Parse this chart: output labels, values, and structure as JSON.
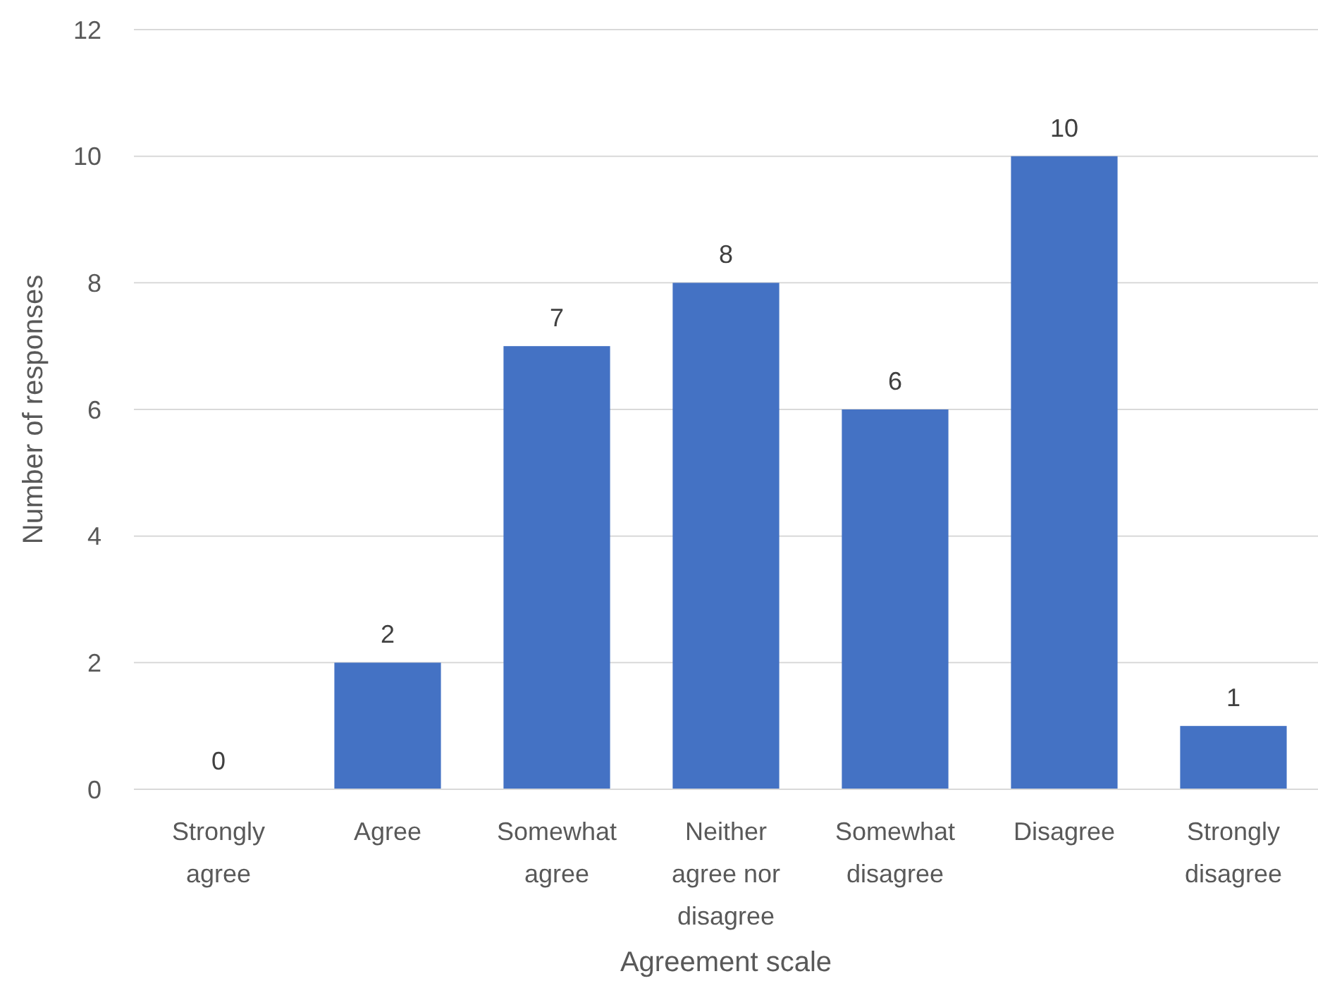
{
  "chart_data": {
    "type": "bar",
    "xlabel": "Agreement scale",
    "ylabel": "Number of responses",
    "categories": [
      "Strongly agree",
      "Agree",
      "Somewhat agree",
      "Neither agree nor disagree",
      "Somewhat disagree",
      "Disagree",
      "Strongly disagree"
    ],
    "values": [
      0,
      2,
      7,
      8,
      6,
      10,
      1
    ],
    "color": "#4472c4",
    "ylim": [
      0,
      12
    ],
    "yticks": [
      0,
      2,
      4,
      6,
      8,
      10,
      12
    ],
    "grid": "y",
    "data_labels": true
  }
}
